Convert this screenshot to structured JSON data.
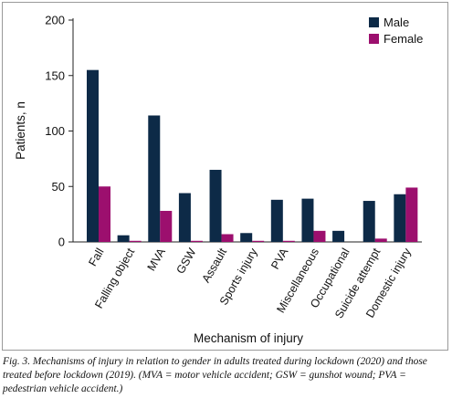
{
  "chart_data": {
    "type": "bar",
    "xlabel": "Mechanism of injury",
    "ylabel": "Patients, n",
    "ylim": [
      0,
      200
    ],
    "yticks": [
      0,
      50,
      100,
      150,
      200
    ],
    "categories": [
      "Fall",
      "Falling object",
      "MVA",
      "GSW",
      "Assault",
      "Sports injury",
      "PVA",
      "Miscellaneous",
      "Occupational",
      "Suicide attempt",
      "Domestic injury"
    ],
    "series": [
      {
        "name": "Male",
        "color": "#0d2a47",
        "values": [
          155,
          6,
          114,
          44,
          65,
          8,
          38,
          39,
          10,
          37,
          43
        ]
      },
      {
        "name": "Female",
        "color": "#9c0f6e",
        "values": [
          50,
          1,
          28,
          1,
          7,
          1,
          1,
          10,
          0,
          3,
          49
        ]
      }
    ],
    "legend_position": "top-right",
    "grid": false
  },
  "caption": "Fig. 3. Mechanisms of injury in relation to gender in adults treated during lockdown (2020) and those treated before lockdown (2019). (MVA = motor vehicle accident; GSW = gunshot wound; PVA = pedestrian vehicle accident.)"
}
